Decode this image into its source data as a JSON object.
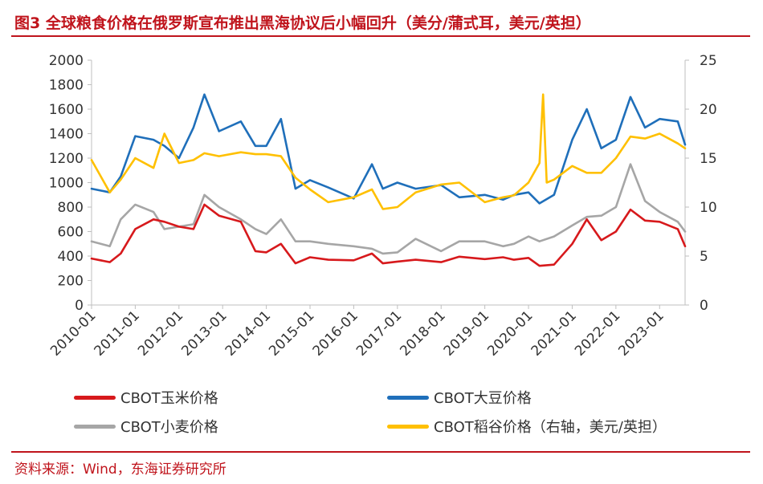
{
  "figure": {
    "title": "图3 全球粮食价格在俄罗斯宣布推出黑海协议后小幅回升（美分/蒲式耳，美元/英担）",
    "source": "资料来源：Wind，东海证券研究所"
  },
  "chart_data": {
    "type": "line",
    "x_ticks": [
      "2010-01",
      "2011-01",
      "2012-01",
      "2013-01",
      "2014-01",
      "2015-01",
      "2016-01",
      "2017-01",
      "2018-01",
      "2019-01",
      "2020-01",
      "2021-01",
      "2022-01",
      "2023-01"
    ],
    "y_left": {
      "min": 0,
      "max": 2000,
      "ticks": [
        0,
        200,
        400,
        600,
        800,
        1000,
        1200,
        1400,
        1600,
        1800,
        2000
      ]
    },
    "y_right": {
      "min": 0,
      "max": 25,
      "ticks": [
        0,
        5,
        10,
        15,
        20,
        25
      ]
    },
    "grid": false,
    "legend_position": "bottom",
    "x_start": "2010-01",
    "x_end": "2023-08",
    "series": [
      {
        "name": "CBOT玉米价格",
        "color": "#d7191c",
        "axis": "left",
        "x": [
          "2010-01",
          "2010-06",
          "2010-09",
          "2011-01",
          "2011-06",
          "2011-09",
          "2012-01",
          "2012-05",
          "2012-08",
          "2012-12",
          "2013-06",
          "2013-10",
          "2014-01",
          "2014-05",
          "2014-09",
          "2015-01",
          "2015-06",
          "2016-01",
          "2016-06",
          "2016-09",
          "2017-01",
          "2017-06",
          "2018-01",
          "2018-06",
          "2019-01",
          "2019-06",
          "2019-09",
          "2020-01",
          "2020-04",
          "2020-08",
          "2021-01",
          "2021-05",
          "2021-09",
          "2022-01",
          "2022-05",
          "2022-09",
          "2023-01",
          "2023-06",
          "2023-08"
        ],
        "y": [
          380,
          350,
          420,
          620,
          700,
          680,
          640,
          620,
          820,
          730,
          680,
          440,
          430,
          500,
          340,
          390,
          370,
          365,
          420,
          340,
          355,
          370,
          350,
          395,
          375,
          390,
          370,
          385,
          320,
          330,
          500,
          700,
          530,
          600,
          780,
          690,
          680,
          620,
          480
        ]
      },
      {
        "name": "CBOT大豆价格",
        "color": "#1f6fba",
        "axis": "left",
        "x": [
          "2010-01",
          "2010-06",
          "2010-09",
          "2011-01",
          "2011-06",
          "2011-09",
          "2012-01",
          "2012-05",
          "2012-08",
          "2012-12",
          "2013-06",
          "2013-10",
          "2014-01",
          "2014-05",
          "2014-09",
          "2015-01",
          "2015-06",
          "2016-01",
          "2016-06",
          "2016-09",
          "2017-01",
          "2017-06",
          "2018-01",
          "2018-06",
          "2019-01",
          "2019-06",
          "2019-09",
          "2020-01",
          "2020-04",
          "2020-08",
          "2021-01",
          "2021-05",
          "2021-09",
          "2022-01",
          "2022-05",
          "2022-09",
          "2023-01",
          "2023-06",
          "2023-08"
        ],
        "y": [
          950,
          920,
          1050,
          1380,
          1350,
          1300,
          1200,
          1450,
          1720,
          1420,
          1500,
          1300,
          1300,
          1520,
          950,
          1020,
          960,
          870,
          1150,
          950,
          1000,
          950,
          980,
          880,
          900,
          860,
          900,
          920,
          830,
          900,
          1350,
          1600,
          1280,
          1350,
          1700,
          1450,
          1520,
          1500,
          1310
        ]
      },
      {
        "name": "CBOT小麦价格",
        "color": "#a6a6a6",
        "axis": "left",
        "x": [
          "2010-01",
          "2010-06",
          "2010-09",
          "2011-01",
          "2011-06",
          "2011-09",
          "2012-01",
          "2012-05",
          "2012-08",
          "2012-12",
          "2013-06",
          "2013-10",
          "2014-01",
          "2014-05",
          "2014-09",
          "2015-01",
          "2015-06",
          "2016-01",
          "2016-06",
          "2016-09",
          "2017-01",
          "2017-06",
          "2018-01",
          "2018-06",
          "2019-01",
          "2019-06",
          "2019-09",
          "2020-01",
          "2020-04",
          "2020-08",
          "2021-01",
          "2021-05",
          "2021-09",
          "2022-01",
          "2022-05",
          "2022-09",
          "2023-01",
          "2023-06",
          "2023-08"
        ],
        "y": [
          520,
          480,
          700,
          820,
          760,
          620,
          640,
          660,
          900,
          800,
          700,
          620,
          580,
          700,
          520,
          520,
          500,
          480,
          460,
          420,
          430,
          540,
          440,
          520,
          520,
          480,
          500,
          560,
          520,
          560,
          650,
          720,
          730,
          800,
          1150,
          850,
          760,
          680,
          600
        ]
      },
      {
        "name": "CBOT稻谷价格（右轴，美元/英担）",
        "color": "#ffc000",
        "axis": "right",
        "x": [
          "2010-01",
          "2010-06",
          "2010-09",
          "2011-01",
          "2011-06",
          "2011-09",
          "2012-01",
          "2012-05",
          "2012-08",
          "2012-12",
          "2013-06",
          "2013-10",
          "2014-01",
          "2014-05",
          "2014-09",
          "2015-01",
          "2015-06",
          "2016-01",
          "2016-06",
          "2016-09",
          "2017-01",
          "2017-06",
          "2018-01",
          "2018-06",
          "2019-01",
          "2019-06",
          "2019-09",
          "2020-01",
          "2020-04",
          "2020-05",
          "2020-06",
          "2020-08",
          "2021-01",
          "2021-05",
          "2021-09",
          "2022-01",
          "2022-05",
          "2022-09",
          "2023-01",
          "2023-06",
          "2023-08"
        ],
        "y": [
          14.8,
          11.5,
          12.8,
          15.0,
          14.0,
          17.5,
          14.5,
          14.8,
          15.5,
          15.2,
          15.6,
          15.4,
          15.4,
          15.2,
          13.0,
          11.8,
          10.5,
          11.0,
          11.8,
          9.8,
          10.0,
          11.5,
          12.3,
          12.5,
          10.5,
          11.0,
          11.2,
          12.5,
          14.5,
          21.5,
          12.5,
          12.8,
          14.2,
          13.5,
          13.5,
          15.0,
          17.2,
          17.0,
          17.5,
          16.5,
          16.0
        ]
      }
    ]
  }
}
